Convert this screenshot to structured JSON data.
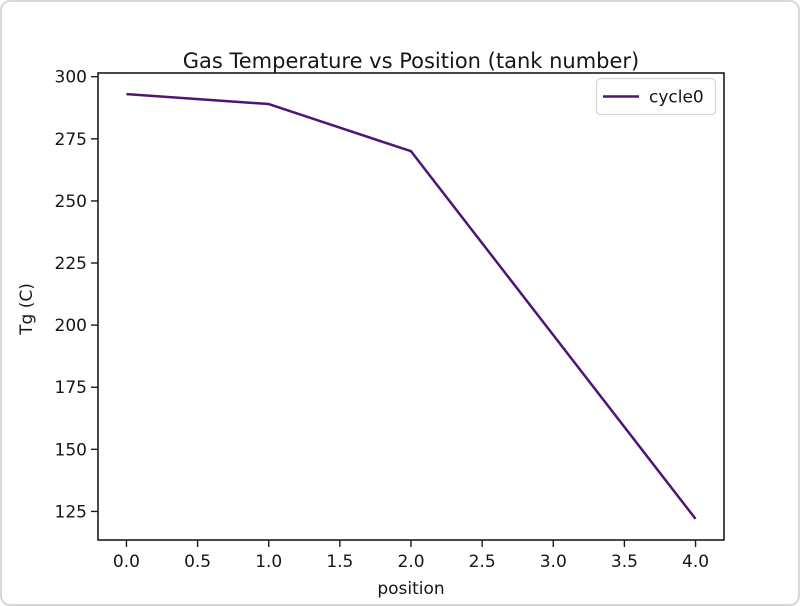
{
  "frame": {
    "background": "#ffffff",
    "border_color": "#d8d8d8"
  },
  "chart_data": {
    "type": "line",
    "title": "Gas Temperature vs Position (tank number)",
    "xlabel": "position",
    "ylabel": "Tg (C)",
    "xlim": [
      -0.2,
      4.2
    ],
    "ylim": [
      113.5,
      301.5
    ],
    "x_tick_labels": [
      "0.0",
      "0.5",
      "1.0",
      "1.5",
      "2.0",
      "2.5",
      "3.0",
      "3.5",
      "4.0"
    ],
    "y_tick_labels": [
      "125",
      "150",
      "175",
      "200",
      "225",
      "250",
      "275",
      "300"
    ],
    "grid": false,
    "legend": {
      "position": "upper right"
    },
    "series": [
      {
        "name": "cycle0",
        "color": "#4e1476",
        "x": [
          0,
          1,
          2,
          4
        ],
        "y": [
          293,
          289,
          270,
          122
        ]
      }
    ]
  }
}
